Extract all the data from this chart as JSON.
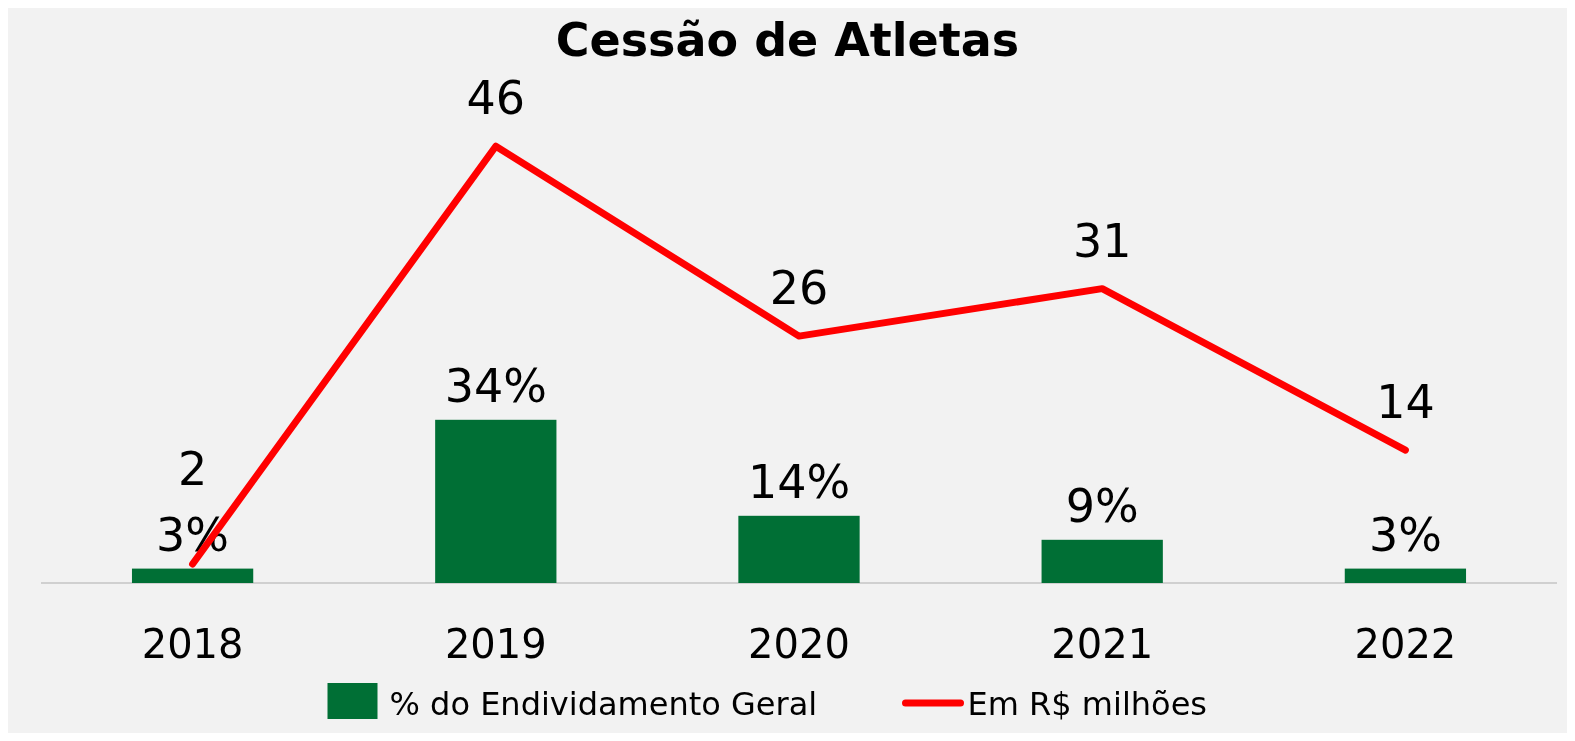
{
  "chart_data": {
    "type": "bar",
    "title": "Cessão de Atletas",
    "categories": [
      "2018",
      "2019",
      "2020",
      "2021",
      "2022"
    ],
    "series": [
      {
        "name": "% do Endividamento Geral",
        "color": "#006f35",
        "values": [
          3,
          34,
          14,
          9,
          3
        ],
        "value_labels": [
          "3%",
          "34%",
          "14%",
          "9%",
          "3%"
        ]
      },
      {
        "name": "Em R$ milhões",
        "type": "line",
        "axis": "y2",
        "color": "#ff0000",
        "values": [
          2,
          46,
          26,
          31,
          14
        ],
        "value_labels": [
          "2",
          "46",
          "26",
          "31",
          "14"
        ]
      }
    ],
    "tick_labels": "x",
    "legend": "bottom"
  }
}
